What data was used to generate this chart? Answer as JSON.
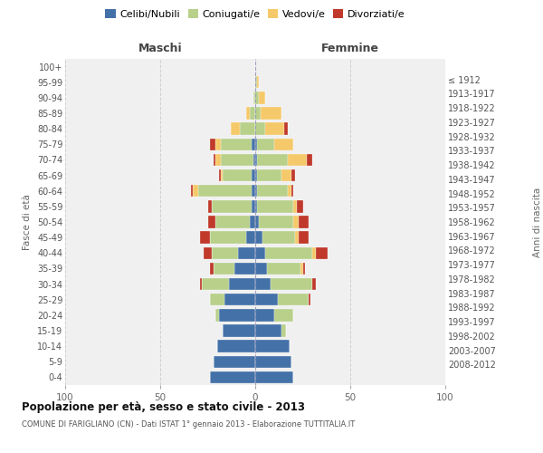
{
  "age_groups": [
    "0-4",
    "5-9",
    "10-14",
    "15-19",
    "20-24",
    "25-29",
    "30-34",
    "35-39",
    "40-44",
    "45-49",
    "50-54",
    "55-59",
    "60-64",
    "65-69",
    "70-74",
    "75-79",
    "80-84",
    "85-89",
    "90-94",
    "95-99",
    "100+"
  ],
  "birth_years": [
    "2008-2012",
    "2003-2007",
    "1998-2002",
    "1993-1997",
    "1988-1992",
    "1983-1987",
    "1978-1982",
    "1973-1977",
    "1968-1972",
    "1963-1967",
    "1958-1962",
    "1953-1957",
    "1948-1952",
    "1943-1947",
    "1938-1942",
    "1933-1937",
    "1928-1932",
    "1923-1927",
    "1918-1922",
    "1913-1917",
    "≤ 1912"
  ],
  "males": {
    "celibi": [
      24,
      22,
      20,
      17,
      19,
      16,
      14,
      11,
      9,
      5,
      3,
      2,
      2,
      2,
      1,
      2,
      0,
      0,
      0,
      0,
      0
    ],
    "coniugati": [
      0,
      0,
      0,
      0,
      2,
      8,
      14,
      11,
      14,
      19,
      18,
      21,
      28,
      15,
      17,
      16,
      8,
      3,
      1,
      0,
      0
    ],
    "vedovi": [
      0,
      0,
      0,
      0,
      0,
      0,
      0,
      0,
      0,
      0,
      0,
      0,
      3,
      1,
      3,
      3,
      5,
      2,
      0,
      0,
      0
    ],
    "divorziati": [
      0,
      0,
      0,
      0,
      0,
      0,
      1,
      2,
      4,
      5,
      4,
      2,
      1,
      1,
      1,
      3,
      0,
      0,
      0,
      0,
      0
    ]
  },
  "females": {
    "nubili": [
      20,
      19,
      18,
      14,
      10,
      12,
      8,
      6,
      5,
      4,
      2,
      1,
      1,
      1,
      1,
      1,
      0,
      0,
      0,
      0,
      0
    ],
    "coniugate": [
      0,
      0,
      0,
      2,
      10,
      16,
      22,
      18,
      25,
      17,
      18,
      19,
      16,
      13,
      16,
      9,
      5,
      3,
      2,
      1,
      0
    ],
    "vedove": [
      0,
      0,
      0,
      0,
      0,
      0,
      0,
      1,
      2,
      2,
      3,
      2,
      2,
      5,
      10,
      10,
      10,
      11,
      3,
      1,
      0
    ],
    "divorziate": [
      0,
      0,
      0,
      0,
      0,
      1,
      2,
      1,
      6,
      5,
      5,
      3,
      1,
      2,
      3,
      0,
      2,
      0,
      0,
      0,
      0
    ]
  },
  "color_celibi": "#4472a8",
  "color_coniugati": "#b8d08a",
  "color_vedovi": "#f5c96a",
  "color_divorziati": "#c0392b",
  "xlim": 100,
  "title": "Popolazione per età, sesso e stato civile - 2013",
  "subtitle": "COMUNE DI FARIGLIANO (CN) - Dati ISTAT 1° gennaio 2013 - Elaborazione TUTTITALIA.IT",
  "ylabel_left": "Fasce di età",
  "ylabel_right": "Anni di nascita",
  "xlabel_left": "Maschi",
  "xlabel_right": "Femmine",
  "bg_color": "#f0f0f0"
}
